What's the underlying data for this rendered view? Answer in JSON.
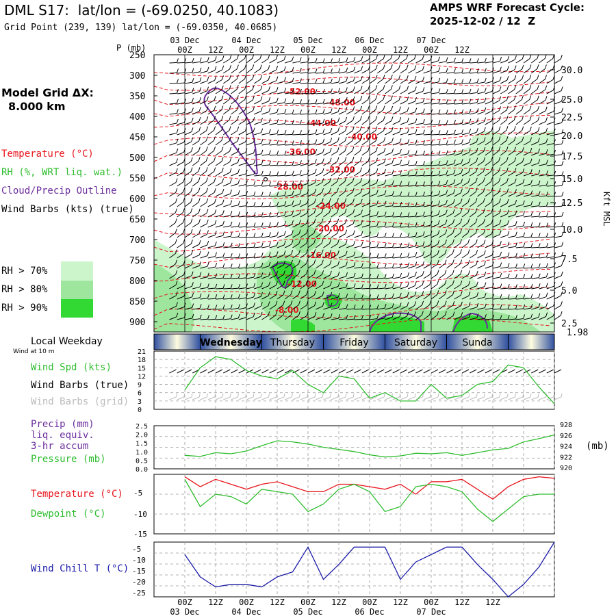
{
  "header": {
    "title": "DML S17:  lat/lon = (-69.0250, 40.1083)",
    "subtitle": "Grid Point (239, 139) lat/lon = (-69.0350, 40.0685)",
    "cycle_line1": "AMPS WRF Forecast Cycle:",
    "cycle_line2": "2025-12-02 / 12  Z"
  },
  "sidebar": {
    "grid_label": "Model Grid ΔX:",
    "grid_value": "8.000 km",
    "legend_temperature": "Temperature (°C)",
    "legend_rh": "RH (%, WRT liq. wat.)",
    "legend_cloud": "Cloud/Precip Outline",
    "legend_wind": "Wind Barbs (kts) (true)",
    "rh70": "RH > 70%",
    "rh80": "RH > 80%",
    "rh90": "RH > 90%",
    "local_weekday": "Local Weekday",
    "wind_at": "Wind at 10 m",
    "wind_spd": "Wind Spd (kts)",
    "wind_barbs_true": "Wind Barbs (true)",
    "wind_barbs_grid": "Wind Barbs (grid)",
    "precip1": "Precip (mm)",
    "precip2": "liq. equiv.",
    "precip3": "3-hr accum",
    "pressure": "Pressure (mb)",
    "pressure_unit": "(mb)",
    "temp_label": "Temperature (°C)",
    "dew_label": "Dewpoint (°C)",
    "windchill_label": "Wind Chill T (°C)"
  },
  "axes": {
    "p_label": "P (mb)",
    "kft_label": "Kft MSL",
    "pressure_levels": [
      "250",
      "300",
      "350",
      "400",
      "450",
      "500",
      "550",
      "600",
      "650",
      "700",
      "750",
      "800",
      "850",
      "900"
    ],
    "kft_levels": [
      "30.0",
      "25.0",
      "22.5",
      "20.0",
      "17.5",
      "15.0",
      "12.5",
      "10.0",
      "7.5",
      "5.0",
      "2.5"
    ],
    "kft_surface": "1.98",
    "time_ticks": [
      "00Z",
      "12Z",
      "00Z",
      "12Z",
      "00Z",
      "12Z",
      "00Z",
      "12Z",
      "00Z",
      "12Z"
    ],
    "date_labels": [
      "03 Dec",
      "04 Dec",
      "05 Dec",
      "06 Dec",
      "07 Dec"
    ],
    "weekdays": [
      "Wednesday",
      "Thursday",
      "Friday",
      "Saturday",
      "Sunda"
    ],
    "wspd_ticks": [
      "21",
      "18",
      "15",
      "12",
      "9",
      "6",
      "3",
      "0"
    ],
    "precip_ticks": [
      "2.5",
      "2.0",
      "1.5",
      "1.0",
      "0.5",
      "0.0"
    ],
    "press_ticks": [
      "928",
      "926",
      "924",
      "922",
      "920"
    ],
    "temp_ticks": [
      "-5",
      "-10",
      "-15"
    ],
    "chill_ticks": [
      "-5",
      "-10",
      "-15",
      "-20",
      "-25"
    ]
  },
  "colors": {
    "temperature": "#e8141b",
    "rh": "#2ebd2e",
    "cloud": "#6b2d9c",
    "windchill": "#1a1aa8",
    "rh70": "#ccf5cc",
    "rh80": "#9ee69e",
    "rh90": "#33d933"
  },
  "chart_data": [
    {
      "type": "line",
      "title": "Temperature isotherms (°C)",
      "isotherm_labels": [
        "-52.00",
        "-48.00",
        "-44.00",
        "-40.00",
        "-36.00",
        "-32.00",
        "-28.00",
        "-24.00",
        "-20.00",
        "-16.00",
        "-12.00",
        "-8.00"
      ],
      "ylabel": "P (mb)",
      "ylim": [
        250,
        925
      ]
    },
    {
      "type": "line",
      "ylabel": "Wind Spd (kts)",
      "ylim": [
        0,
        21
      ],
      "x_hours": [
        0,
        6,
        12,
        18,
        24,
        30,
        36,
        42,
        48,
        54,
        60,
        66,
        72,
        78,
        84,
        90,
        96,
        102,
        108,
        114,
        120,
        126,
        132,
        138,
        144
      ],
      "series": [
        {
          "name": "Wind Spd (kts)",
          "values": [
            7,
            15,
            19,
            18,
            14,
            12,
            11,
            14,
            9,
            6,
            12,
            11,
            4,
            6,
            3,
            3,
            9,
            4,
            5,
            9,
            10,
            16,
            15,
            8,
            2
          ]
        }
      ]
    },
    {
      "type": "line",
      "ylabel": "Pressure (mb)",
      "ylim": [
        920,
        928
      ],
      "series": [
        {
          "name": "Pressure (mb)",
          "values": [
            922.5,
            922.3,
            923.0,
            922.8,
            923.3,
            924.3,
            925.2,
            925.0,
            924.6,
            924.0,
            923.6,
            923.2,
            922.6,
            922.2,
            922.4,
            922.9,
            922.8,
            923.0,
            922.5,
            923.0,
            923.5,
            923.8,
            925.0,
            925.6,
            926.3
          ]
        }
      ]
    },
    {
      "type": "line",
      "ylim": [
        -15,
        -3
      ],
      "series": [
        {
          "name": "Temperature (°C)",
          "values": [
            -3.5,
            -5.5,
            -4.0,
            -5.0,
            -6.0,
            -5.0,
            -4.5,
            -5.5,
            -6.5,
            -6.5,
            -5.0,
            -5.0,
            -5.5,
            -6.0,
            -5.0,
            -7.0,
            -4.5,
            -4.5,
            -4.0,
            -6.0,
            -8.0,
            -5.5,
            -4.0,
            -3.5,
            -3.8
          ]
        },
        {
          "name": "Dewpoint (°C)",
          "values": [
            -4.0,
            -9.5,
            -7.0,
            -7.5,
            -9.0,
            -6.0,
            -6.5,
            -7.0,
            -10.5,
            -9.0,
            -6.0,
            -5.0,
            -6.5,
            -10.5,
            -9.5,
            -5.5,
            -5.0,
            -5.5,
            -6.5,
            -10.0,
            -12.5,
            -10.0,
            -7.5,
            -7.0,
            -7.0
          ]
        }
      ]
    },
    {
      "type": "line",
      "ylabel": "Wind Chill T (°C)",
      "ylim": [
        -25,
        -3
      ],
      "series": [
        {
          "name": "Wind Chill T (°C)",
          "values": [
            -8,
            -17,
            -21,
            -20,
            -20,
            -21,
            -17,
            -15,
            -5,
            -18,
            -12,
            -5,
            -5,
            -5,
            -18,
            -11,
            -8,
            -5,
            -5,
            -12,
            -18,
            -25,
            -20,
            -13,
            -3
          ]
        }
      ]
    }
  ]
}
